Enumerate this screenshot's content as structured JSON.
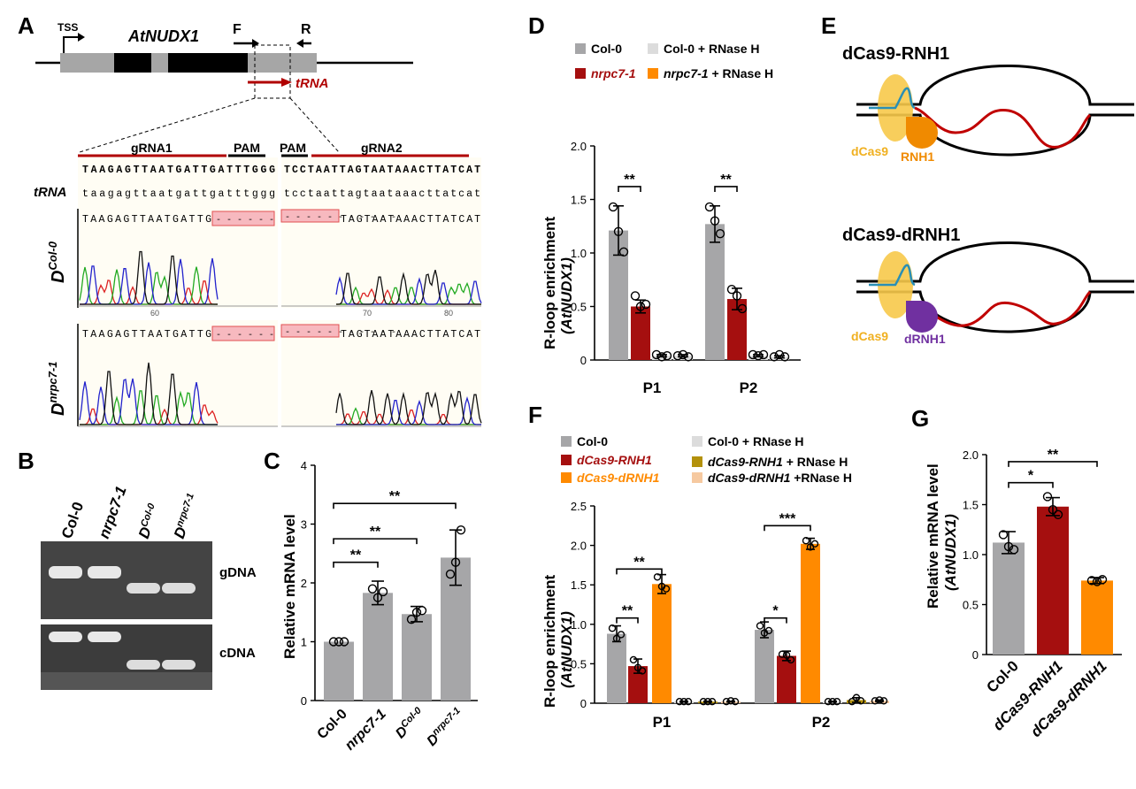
{
  "panel_letters": {
    "A": "A",
    "B": "B",
    "C": "C",
    "D": "D",
    "E": "E",
    "F": "F",
    "G": "G"
  },
  "panelA": {
    "tss": "TSS",
    "gene": "AtNUDX1",
    "primer_f": "F",
    "primer_r": "R",
    "trna_arrow": "tRNA",
    "grna1": "gRNA1",
    "pam1": "PAM",
    "pam2": "PAM",
    "grna2": "gRNA2",
    "ref_seq1": "TAAGAGTTAATGATTGATTTGGG",
    "ref_seq2": "TCCTAATTAGTAATAAACTTATCAT",
    "trna_label": "tRNA",
    "trna_seq1": "taagagttaatgattgatttggg",
    "trna_seq2": "tcctaattagtaataaacttatcat",
    "samples": [
      {
        "label": "D",
        "sup": "Col-0",
        "seq1": "TAAGAGTTAATGATTG",
        "seq2": "TAGTAATAAACTTATCAT"
      },
      {
        "label": "D",
        "sup": "nrpc7-1",
        "seq1": "TAAGAGTTAATGATTG",
        "seq2": "TAGTAATAAACTTATCAT"
      }
    ],
    "deletion_marks": "- - - - - - - - - - -",
    "tick_60": "60",
    "tick_70": "70",
    "tick_80": "80"
  },
  "panelB": {
    "lanes": [
      "Col-0",
      "nrpc7-1",
      "D",
      "D"
    ],
    "lane_sups": [
      "",
      "",
      "Col-0",
      "nrpc7-1"
    ],
    "gel_labels": [
      "gDNA",
      "cDNA"
    ]
  },
  "colors": {
    "grey": "#a6a6a8",
    "darkred": "#a50f0f",
    "orange": "#ff8a00",
    "lightgrey": "#dcdcdc",
    "olive": "#b3910b",
    "peach": "#f6c9a0",
    "purple": "#7030a0",
    "yellow": "#f5c842",
    "blue": "#2a8fb5"
  },
  "chart_data": [
    {
      "panel": "C",
      "type": "bar",
      "ylabel": "Relative mRNA level",
      "ylim": [
        0,
        4
      ],
      "yticks": [
        0,
        1,
        2,
        3,
        4
      ],
      "categories": [
        "Col-0",
        "nrpc7-1",
        "D",
        "D"
      ],
      "category_sups": [
        "",
        "",
        "Col-0",
        "nrpc7-1"
      ],
      "values": [
        1.0,
        1.83,
        1.47,
        2.43
      ],
      "errors": [
        0.0,
        0.2,
        0.13,
        0.47
      ],
      "points": [
        [
          1.0,
          1.0,
          1.0
        ],
        [
          1.9,
          1.75,
          1.85
        ],
        [
          1.38,
          1.5,
          1.53
        ],
        [
          2.15,
          2.35,
          2.9
        ]
      ],
      "significance": [
        {
          "from": 0,
          "to": 1,
          "label": "**",
          "y": 2.35
        },
        {
          "from": 0,
          "to": 2,
          "label": "**",
          "y": 2.75
        },
        {
          "from": 0,
          "to": 3,
          "label": "**",
          "y": 3.35
        }
      ]
    },
    {
      "panel": "D",
      "type": "bar",
      "ylabel": "R-loop enrichment",
      "ylabel2": "(AtNUDX1)",
      "ylim": [
        0,
        2.0
      ],
      "yticks": [
        "0",
        "0.5",
        "1.0",
        "1.5",
        "2.0"
      ],
      "groups": [
        "P1",
        "P2"
      ],
      "legend": [
        "Col-0",
        "Col-0 + RNase H",
        "nrpc7-1",
        "nrpc7-1 + RNase H"
      ],
      "series": [
        {
          "name": "Col-0",
          "values": [
            1.21,
            1.27
          ],
          "errors": [
            0.23,
            0.17
          ],
          "points": [
            [
              1.43,
              1.2,
              1.01
            ],
            [
              1.43,
              1.3,
              1.18
            ]
          ]
        },
        {
          "name": "nrpc7-1",
          "values": [
            0.5,
            0.57
          ],
          "errors": [
            0.06,
            0.1
          ],
          "points": [
            [
              0.6,
              0.5,
              0.52
            ],
            [
              0.66,
              0.6,
              0.48
            ]
          ]
        },
        {
          "name": "Col-0 + RNase H",
          "values": [
            0.04,
            0.04
          ],
          "errors": [
            0.01,
            0.01
          ],
          "points": [
            [
              0.05,
              0.03,
              0.04
            ],
            [
              0.05,
              0.04,
              0.05
            ]
          ]
        },
        {
          "name": "nrpc7-1 + RNase H",
          "values": [
            0.04,
            0.03
          ],
          "errors": [
            0.01,
            0.01
          ],
          "points": [
            [
              0.04,
              0.05,
              0.03
            ],
            [
              0.03,
              0.05,
              0.03
            ]
          ]
        }
      ],
      "significance": [
        {
          "group": 0,
          "label": "**",
          "y": 1.62
        },
        {
          "group": 1,
          "label": "**",
          "y": 1.62
        }
      ]
    },
    {
      "panel": "F",
      "type": "bar",
      "ylabel": "R-loop enrichment",
      "ylabel2": "(AtNUDX1)",
      "ylim": [
        0,
        2.5
      ],
      "yticks": [
        "0",
        "0.5",
        "1.0",
        "1.5",
        "2.0",
        "2.5"
      ],
      "groups": [
        "P1",
        "P2"
      ],
      "legend": [
        "Col-0",
        "dCas9-RNH1",
        "dCas9-dRNH1",
        "Col-0 + RNase H",
        "dCas9-RNH1 + RNase H",
        "dCas9-dRNH1 +RNase H"
      ],
      "series": [
        {
          "name": "Col-0",
          "values": [
            0.88,
            0.93
          ],
          "errors": [
            0.1,
            0.1
          ],
          "points": [
            [
              0.95,
              0.82,
              0.87
            ],
            [
              0.98,
              0.89,
              0.92
            ]
          ]
        },
        {
          "name": "dCas9-RNH1",
          "values": [
            0.47,
            0.6
          ],
          "errors": [
            0.09,
            0.06
          ],
          "points": [
            [
              0.55,
              0.45,
              0.41
            ],
            [
              0.62,
              0.61,
              0.55
            ]
          ]
        },
        {
          "name": "dCas9-dRNH1",
          "values": [
            1.51,
            2.02
          ],
          "errors": [
            0.12,
            0.07
          ],
          "points": [
            [
              1.6,
              1.48,
              1.45
            ],
            [
              2.06,
              1.98,
              2.02
            ]
          ]
        },
        {
          "name": "Col-0 + RNase H",
          "values": [
            0.02,
            0.02
          ],
          "errors": [
            0.005,
            0.005
          ],
          "points": [
            [
              0.02,
              0.02,
              0.02
            ],
            [
              0.02,
              0.02,
              0.02
            ]
          ]
        },
        {
          "name": "dCas9-RNH1 + RNase H",
          "values": [
            0.02,
            0.04
          ],
          "errors": [
            0.005,
            0.03
          ],
          "points": [
            [
              0.02,
              0.02,
              0.02
            ],
            [
              0.02,
              0.07,
              0.03
            ]
          ]
        },
        {
          "name": "dCas9-dRNH1 +RNase H",
          "values": [
            0.02,
            0.03
          ],
          "errors": [
            0.005,
            0.01
          ],
          "points": [
            [
              0.02,
              0.03,
              0.02
            ],
            [
              0.03,
              0.04,
              0.03
            ]
          ]
        }
      ],
      "significance": [
        {
          "group": 0,
          "a": 0,
          "b": 1,
          "label": "**",
          "y": 1.08
        },
        {
          "group": 0,
          "a": 0,
          "b": 2,
          "label": "**",
          "y": 1.7
        },
        {
          "group": 1,
          "a": 0,
          "b": 1,
          "label": "*",
          "y": 1.08
        },
        {
          "group": 1,
          "a": 0,
          "b": 2,
          "label": "***",
          "y": 2.25
        }
      ]
    },
    {
      "panel": "G",
      "type": "bar",
      "ylabel": "Relative mRNA level",
      "ylabel2": "(AtNUDX1)",
      "ylim": [
        0,
        2.0
      ],
      "yticks": [
        "0",
        "0.5",
        "1.0",
        "1.5",
        "2.0"
      ],
      "categories": [
        "Col-0",
        "dCas9-RNH1",
        "dCas9-dRNH1"
      ],
      "values": [
        1.12,
        1.48,
        0.74
      ],
      "errors": [
        0.11,
        0.09,
        0.03
      ],
      "points": [
        [
          1.2,
          1.08,
          1.05
        ],
        [
          1.58,
          1.45,
          1.4
        ],
        [
          0.74,
          0.73,
          0.75
        ]
      ],
      "significance": [
        {
          "from": 0,
          "to": 1,
          "label": "*",
          "y": 1.72
        },
        {
          "from": 0,
          "to": 2,
          "label": "**",
          "y": 1.93
        }
      ]
    }
  ],
  "panelE": {
    "title1": "dCas9-RNH1",
    "title2": "dCas9-dRNH1",
    "dcas9": "dCas9",
    "rnh1": "RNH1",
    "drnh1": "dRNH1"
  }
}
